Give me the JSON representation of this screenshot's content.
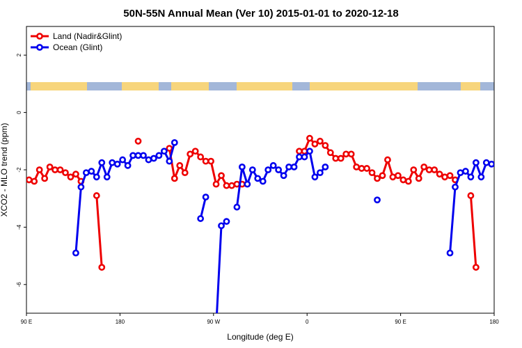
{
  "chart_data": {
    "type": "line",
    "title": "50N-55N Annual Mean (Ver 10)   2015-01-01 to 2020-12-18",
    "xlabel": "Longitude (deg E)",
    "ylabel": "XCO2 - MLO trend (ppm)",
    "xlim": [
      90,
      540
    ],
    "xticks": [
      {
        "value": 90,
        "label": "90 E"
      },
      {
        "value": 180,
        "label": "180"
      },
      {
        "value": 270,
        "label": "90 W"
      },
      {
        "value": 360,
        "label": "0"
      },
      {
        "value": 450,
        "label": "90 E"
      },
      {
        "value": 540,
        "label": "180"
      }
    ],
    "ylim": [
      -7,
      3
    ],
    "yticks": [
      -6,
      -4,
      -2,
      0,
      2
    ],
    "legend": "top-left",
    "series": [
      {
        "name": "Land (Nadir&Glint)",
        "color": "#ee0000",
        "x": [
          92.5,
          97.5,
          102.5,
          107.5,
          112.5,
          117.5,
          122.5,
          127.5,
          132.5,
          137.5,
          142.5,
          147.5,
          157.5,
          162.5,
          177.5,
          197.5,
          212.5,
          227.5,
          232.5,
          237.5,
          242.5,
          247.5,
          252.5,
          257.5,
          262.5,
          267.5,
          272.5,
          277.5,
          282.5,
          287.5,
          292.5,
          297.5,
          322.5,
          352.5,
          357.5,
          362.5,
          367.5,
          372.5,
          377.5,
          382.5,
          387.5,
          392.5,
          397.5,
          402.5,
          407.5,
          412.5,
          417.5,
          422.5,
          427.5,
          432.5,
          437.5,
          442.5,
          447.5,
          452.5,
          457.5,
          462.5,
          467.5,
          472.5,
          477.5,
          482.5,
          487.5,
          492.5,
          497.5,
          502.5,
          512.5,
          517.5,
          522.5
        ],
        "values": [
          -2.35,
          -2.4,
          -2.0,
          -2.3,
          -1.9,
          -2.0,
          -2.0,
          -2.1,
          -2.25,
          -2.15,
          -2.4,
          null,
          -2.9,
          -5.4,
          null,
          -1.0,
          null,
          -1.25,
          -2.3,
          -1.85,
          -2.1,
          -1.45,
          -1.35,
          -1.55,
          -1.7,
          -1.7,
          -2.5,
          -2.2,
          -2.55,
          -2.55,
          -2.5,
          -2.5,
          null,
          -1.35,
          -1.35,
          -0.9,
          -1.1,
          -1.0,
          -1.15,
          -1.4,
          -1.6,
          -1.6,
          -1.45,
          -1.45,
          -1.9,
          -1.95,
          -1.95,
          -2.1,
          -2.3,
          -2.2,
          -1.65,
          -2.25,
          -2.2,
          -2.35,
          -2.4,
          -2.0,
          -2.3,
          -1.9,
          -2.0,
          -2.0,
          -2.15,
          -2.25,
          -2.2,
          -2.35,
          null,
          -2.9,
          -5.4
        ]
      },
      {
        "name": "Ocean (Glint)",
        "color": "#0000ee",
        "x": [
          137.5,
          142.5,
          147.5,
          152.5,
          157.5,
          162.5,
          167.5,
          172.5,
          177.5,
          182.5,
          187.5,
          192.5,
          197.5,
          202.5,
          207.5,
          212.5,
          217.5,
          222.5,
          227.5,
          232.5,
          242.5,
          257.5,
          262.5,
          267.5,
          272.5,
          277.5,
          282.5,
          287.5,
          292.5,
          297.5,
          302.5,
          307.5,
          312.5,
          317.5,
          322.5,
          327.5,
          332.5,
          337.5,
          342.5,
          347.5,
          352.5,
          357.5,
          362.5,
          367.5,
          372.5,
          377.5,
          402.5,
          427.5,
          467.5,
          497.5,
          502.5,
          507.5,
          512.5,
          517.5,
          522.5,
          527.5,
          532.5,
          537.5
        ],
        "values": [
          -4.9,
          -2.6,
          -2.1,
          -2.05,
          -2.25,
          -1.75,
          -2.25,
          -1.75,
          -1.8,
          -1.65,
          -1.85,
          -1.5,
          -1.5,
          -1.5,
          -1.65,
          -1.6,
          -1.5,
          -1.35,
          -1.7,
          -1.05,
          null,
          -3.7,
          -2.95,
          null,
          -7.5,
          -3.95,
          -3.8,
          null,
          -3.3,
          -1.9,
          -2.5,
          -2.0,
          -2.3,
          -2.4,
          -2.0,
          -1.85,
          -2.0,
          -2.2,
          -1.9,
          -1.9,
          -1.55,
          -1.55,
          -1.35,
          -2.25,
          -2.1,
          -1.9,
          null,
          -3.05,
          null,
          -4.9,
          -2.6,
          -2.1,
          -2.05,
          -2.25,
          -1.75,
          -2.25,
          -1.75,
          -1.8
        ]
      }
    ]
  }
}
